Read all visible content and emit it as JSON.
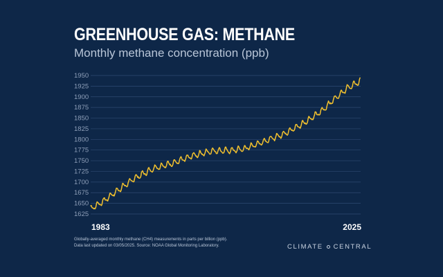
{
  "title": "GREENHOUSE GAS: METHANE",
  "subtitle": "Monthly methane concentration (ppb)",
  "footnote": {
    "line1": "Globally-averaged monthly methane (CH4) measurements in parts per billion (ppb).",
    "line2": "Data last updated on 03/05/2025. Source: NOAA Global Monitoring Laboratory."
  },
  "brand": {
    "left": "CLIMATE",
    "right": "CENTRAL"
  },
  "colors": {
    "background": "#0e2748",
    "line": "#f2c12e",
    "grid": "#2f4a72",
    "tick": "#8e9fb9"
  },
  "chart_data": {
    "type": "line",
    "title": "GREENHOUSE GAS: METHANE",
    "subtitle": "Monthly methane concentration (ppb)",
    "xlabel": "",
    "ylabel": "",
    "x_tick_labels": [
      "1983",
      "2025"
    ],
    "xlim": [
      1983,
      2025.1
    ],
    "ylim": [
      1625,
      1950
    ],
    "y_ticks": [
      1625,
      1650,
      1675,
      1700,
      1725,
      1750,
      1775,
      1800,
      1825,
      1850,
      1875,
      1900,
      1925,
      1950
    ],
    "grid": true,
    "seasonal_amplitude_ppb": 6,
    "trend_anchor_years": [
      1983,
      1985,
      1987,
      1990,
      1993,
      1996,
      1999,
      2002,
      2005,
      2007,
      2010,
      2013,
      2016,
      2019,
      2021,
      2023,
      2025
    ],
    "trend_anchor_values": [
      1637,
      1655,
      1678,
      1710,
      1733,
      1745,
      1762,
      1773,
      1774,
      1778,
      1795,
      1812,
      1836,
      1866,
      1895,
      1920,
      1936
    ],
    "series": [
      {
        "name": "Monthly methane (ppb)"
      }
    ]
  }
}
